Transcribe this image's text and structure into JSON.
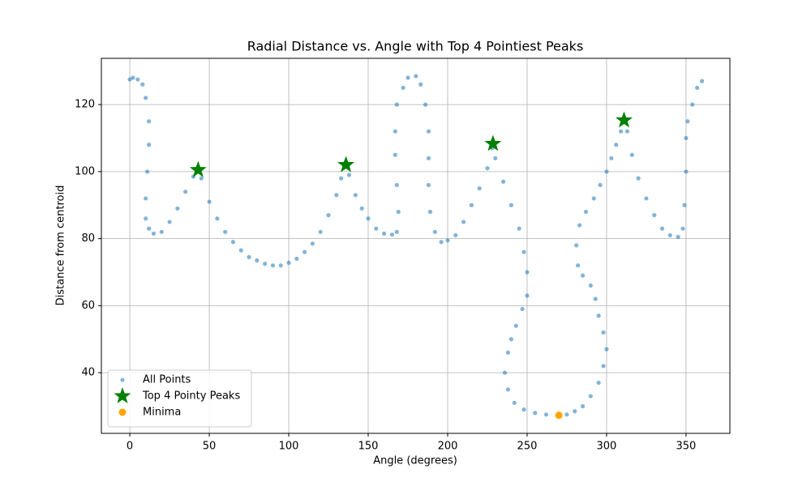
{
  "chart_data": {
    "type": "scatter",
    "title": "Radial Distance vs. Angle with Top 4 Pointiest Peaks",
    "xlabel": "Angle (degrees)",
    "ylabel": "Distance from centroid",
    "xlim": [
      -17.9,
      377.6
    ],
    "ylim": [
      21.9,
      133.8
    ],
    "xticks": [
      0,
      50,
      100,
      150,
      200,
      250,
      300,
      350
    ],
    "yticks": [
      40,
      60,
      80,
      100,
      120
    ],
    "grid": true,
    "legend": "lower left",
    "series": [
      {
        "name": "All Points",
        "color": "#1f77b4",
        "marker": "circle",
        "x": [
          0,
          2,
          5,
          8,
          10,
          12,
          12,
          11,
          10,
          10,
          12,
          15,
          20,
          25,
          30,
          35,
          40,
          43,
          45,
          50,
          55,
          60,
          65,
          70,
          75,
          80,
          85,
          90,
          95,
          100,
          105,
          110,
          115,
          120,
          125,
          130,
          133,
          136,
          138,
          142,
          146,
          150,
          155,
          160,
          165,
          168,
          169,
          168,
          167,
          167,
          168,
          172,
          175,
          180,
          183,
          186,
          188,
          188,
          188,
          189,
          192,
          196,
          200,
          205,
          210,
          215,
          220,
          225,
          228,
          230,
          235,
          240,
          245,
          248,
          250,
          250,
          247,
          243,
          240,
          238,
          236,
          238,
          242,
          248,
          255,
          262,
          270,
          275,
          280,
          285,
          290,
          295,
          298,
          300,
          298,
          295,
          293,
          290,
          285,
          282,
          281,
          283,
          287,
          292,
          296,
          300,
          303,
          306,
          309,
          311,
          313,
          316,
          320,
          325,
          330,
          335,
          340,
          345,
          348,
          349,
          350,
          350,
          351,
          354,
          357,
          360
        ],
        "y": [
          127.5,
          128,
          127.5,
          126,
          122,
          115,
          108,
          100,
          92,
          86,
          83,
          81.5,
          82,
          85,
          89,
          94,
          98.5,
          100.5,
          98,
          91,
          86,
          82,
          79,
          76.5,
          74.5,
          73.5,
          72.5,
          72,
          72,
          72.8,
          74,
          76,
          78.5,
          82,
          87,
          93,
          98,
          102,
          99,
          93,
          89,
          86,
          83,
          81.5,
          81.2,
          82,
          88,
          96,
          105,
          112,
          120,
          125,
          128,
          128.5,
          126,
          120,
          112,
          104,
          96,
          88,
          82,
          79,
          79.5,
          81,
          85,
          90,
          95,
          101,
          107,
          104,
          97,
          90,
          83,
          76,
          70,
          63,
          59,
          54,
          50,
          46,
          40,
          35,
          31,
          29,
          28,
          27.5,
          27.3,
          27.5,
          28.5,
          30,
          33,
          37,
          42,
          47,
          52,
          57,
          62,
          66,
          69,
          72,
          78,
          84,
          88,
          92,
          96,
          100,
          104,
          108,
          112,
          115,
          112,
          105,
          98,
          92,
          87,
          83,
          81,
          80.5,
          83,
          90,
          100,
          110,
          115,
          120,
          125,
          127
        ]
      },
      {
        "name": "Top 4 Pointy Peaks",
        "color": "#008000",
        "marker": "star",
        "x": [
          43,
          136,
          228.5,
          311
        ],
        "y": [
          100.5,
          102,
          108.3,
          115.3
        ]
      },
      {
        "name": "Minima",
        "color": "#ffa500",
        "marker": "circle",
        "x": [
          270
        ],
        "y": [
          27.3
        ]
      }
    ]
  }
}
